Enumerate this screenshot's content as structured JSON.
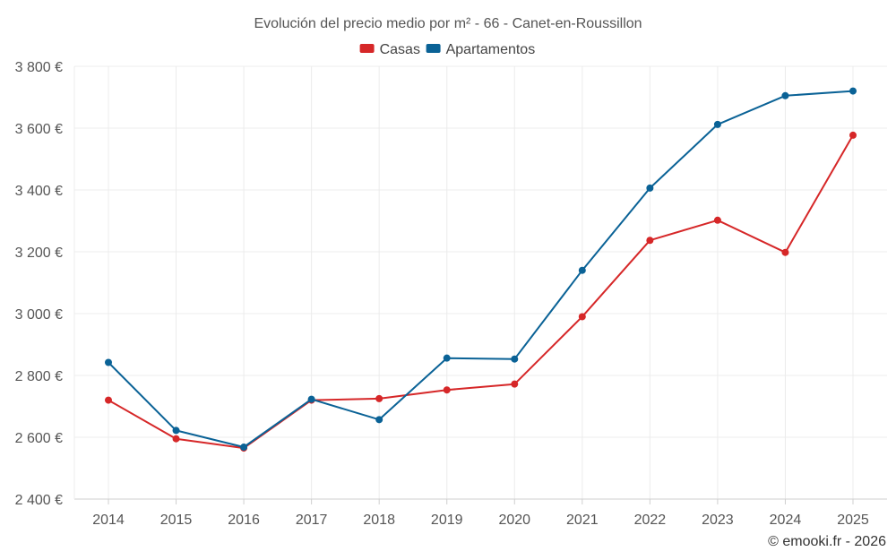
{
  "chart_data": {
    "type": "line",
    "title": "Evolución del precio medio por m² - 66 - Canet-en-Roussillon",
    "x": [
      "2014",
      "2015",
      "2016",
      "2017",
      "2018",
      "2019",
      "2020",
      "2021",
      "2022",
      "2023",
      "2024",
      "2025"
    ],
    "series": [
      {
        "name": "Casas",
        "color": "#d62728",
        "values": [
          2720,
          2595,
          2565,
          2720,
          2725,
          2753,
          2772,
          2990,
          3237,
          3302,
          3198,
          3577
        ]
      },
      {
        "name": "Apartamentos",
        "color": "#0a6296",
        "values": [
          2842,
          2622,
          2568,
          2723,
          2657,
          2856,
          2853,
          3140,
          3406,
          3612,
          3705,
          3720
        ]
      }
    ],
    "ylim": [
      2400,
      3800
    ],
    "yticks": [
      2400,
      2600,
      2800,
      3000,
      3200,
      3400,
      3600,
      3800
    ],
    "ytick_labels": [
      "2 400 €",
      "2 600 €",
      "2 800 €",
      "3 000 €",
      "3 200 €",
      "3 400 €",
      "3 600 €",
      "3 800 €"
    ],
    "xlabel": "",
    "ylabel": "",
    "grid": true,
    "legend_position": "top-center"
  },
  "credit": "© emooki.fr - 2026"
}
